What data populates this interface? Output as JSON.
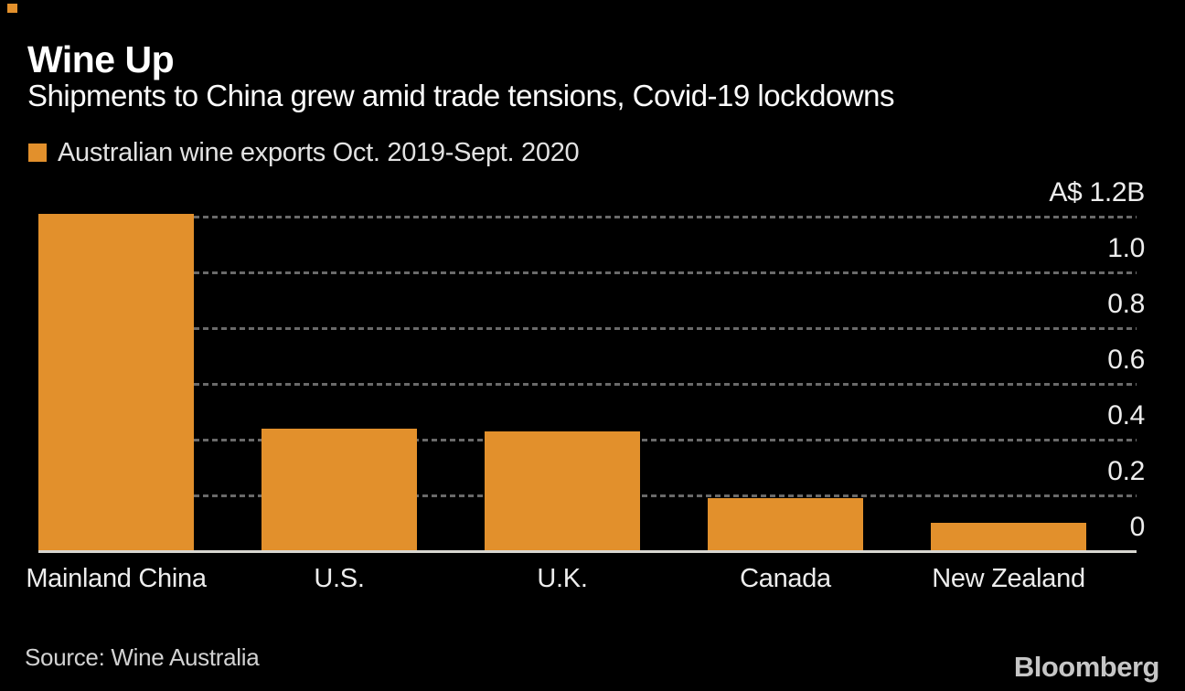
{
  "chart_data": {
    "type": "bar",
    "title": "Wine Up",
    "subtitle": "Shipments to China grew amid trade tensions, Covid-19 lockdowns",
    "series_label": "Australian wine exports Oct. 2019-Sept. 2020",
    "categories": [
      "Mainland China",
      "U.S.",
      "U.K.",
      "Canada",
      "New Zealand"
    ],
    "values": [
      1.21,
      0.44,
      0.43,
      0.19,
      0.1
    ],
    "unit": "A$ billions",
    "ylim": [
      0,
      1.2
    ],
    "ytick_values": [
      1.2,
      1.0,
      0.8,
      0.6,
      0.4,
      0.2,
      0
    ],
    "ytick_labels": [
      "A$ 1.2B",
      "1.0",
      "0.8",
      "0.6",
      "0.4",
      "0.2",
      "0"
    ],
    "grid": "horizontal-dotted",
    "tick_label_side": "right",
    "legend_position": "top-left"
  },
  "colors": {
    "background": "#000000",
    "bar": "#e2902c",
    "accent": "#e2902c",
    "gridline": "#6a6a6a",
    "baseline": "#d8d6d0"
  },
  "footer": {
    "source": "Source: Wine Australia",
    "brand": "Bloomberg"
  }
}
